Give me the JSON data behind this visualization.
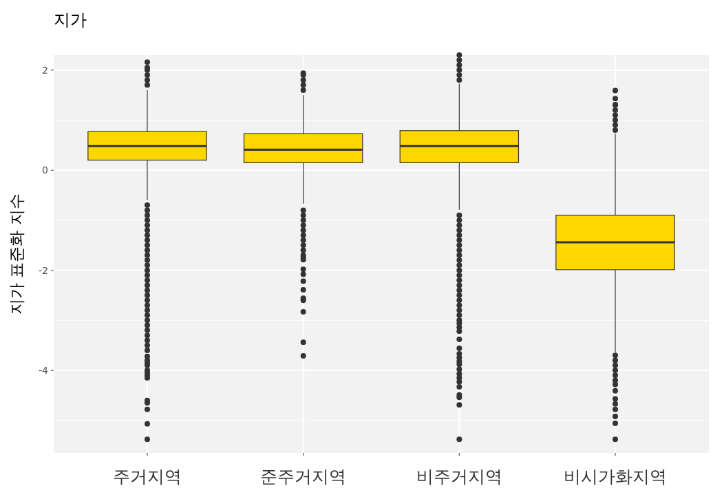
{
  "chart_data": {
    "type": "box",
    "title": "지가",
    "ylabel": "지가 표준화 지수",
    "categories": [
      "주거지역",
      "준주거지역",
      "비주거지역",
      "비시가화지역"
    ],
    "ylim": [
      -5.65,
      2.3
    ],
    "yticks": [
      {
        "value": -5,
        "label": null
      },
      -4,
      {
        "value": -3,
        "label": null
      },
      -2,
      {
        "value": -1,
        "label": null
      },
      0,
      {
        "value": 1,
        "label": null
      },
      2
    ],
    "grid": true,
    "series": [
      {
        "color": "#ffd700",
        "boxes": [
          {
            "low": -0.6,
            "q1": 0.2,
            "median": 0.48,
            "q3": 0.77,
            "high": 1.6,
            "outliers": [
              1.7,
              1.8,
              1.9,
              2.0,
              2.05,
              2.16,
              -0.7,
              -0.8,
              -0.9,
              -1.0,
              -1.1,
              -1.2,
              -1.3,
              -1.4,
              -1.5,
              -1.6,
              -1.7,
              -1.8,
              -1.9,
              -2.0,
              -2.1,
              -2.2,
              -2.3,
              -2.4,
              -2.5,
              -2.6,
              -2.7,
              -2.8,
              -2.9,
              -3.0,
              -3.1,
              -3.2,
              -3.3,
              -3.4,
              -3.5,
              -3.6,
              -3.72,
              -3.8,
              -3.85,
              -3.9,
              -4.0,
              -4.05,
              -4.1,
              -4.15,
              -4.6,
              -4.65,
              -4.78,
              -5.07,
              -5.38
            ]
          },
          {
            "low": -0.67,
            "q1": 0.15,
            "median": 0.41,
            "q3": 0.73,
            "high": 1.5,
            "outliers": [
              1.6,
              1.7,
              1.8,
              1.9,
              1.94,
              -0.8,
              -0.9,
              -1.0,
              -1.1,
              -1.2,
              -1.3,
              -1.4,
              -1.5,
              -1.6,
              -1.7,
              -1.74,
              -1.79,
              -1.98,
              -2.08,
              -2.22,
              -2.39,
              -2.56,
              -2.6,
              -2.83,
              -3.44,
              -3.71
            ]
          },
          {
            "low": -0.79,
            "q1": 0.15,
            "median": 0.48,
            "q3": 0.79,
            "high": 1.73,
            "outliers": [
              1.8,
              1.9,
              2.0,
              2.1,
              2.2,
              2.3,
              -0.9,
              -1.0,
              -1.1,
              -1.2,
              -1.3,
              -1.4,
              -1.5,
              -1.6,
              -1.7,
              -1.8,
              -1.9,
              -2.0,
              -2.1,
              -2.2,
              -2.3,
              -2.4,
              -2.5,
              -2.6,
              -2.7,
              -2.8,
              -2.9,
              -3.0,
              -3.06,
              -3.14,
              -3.22,
              -3.38,
              -3.56,
              -3.67,
              -3.75,
              -3.82,
              -3.88,
              -3.98,
              -4.07,
              -4.15,
              -4.23,
              -4.33,
              -4.49,
              -4.54,
              -4.69,
              -5.38
            ]
          },
          {
            "low": -3.64,
            "q1": -1.99,
            "median": -1.44,
            "q3": -0.9,
            "high": 0.73,
            "outliers": [
              0.8,
              0.9,
              1.0,
              1.1,
              1.2,
              1.3,
              1.31,
              1.43,
              1.59,
              -3.7,
              -3.8,
              -3.9,
              -4.0,
              -4.1,
              -4.2,
              -4.28,
              -4.41,
              -4.57,
              -4.67,
              -4.78,
              -4.92,
              -5.06,
              -5.38
            ]
          }
        ]
      }
    ]
  }
}
